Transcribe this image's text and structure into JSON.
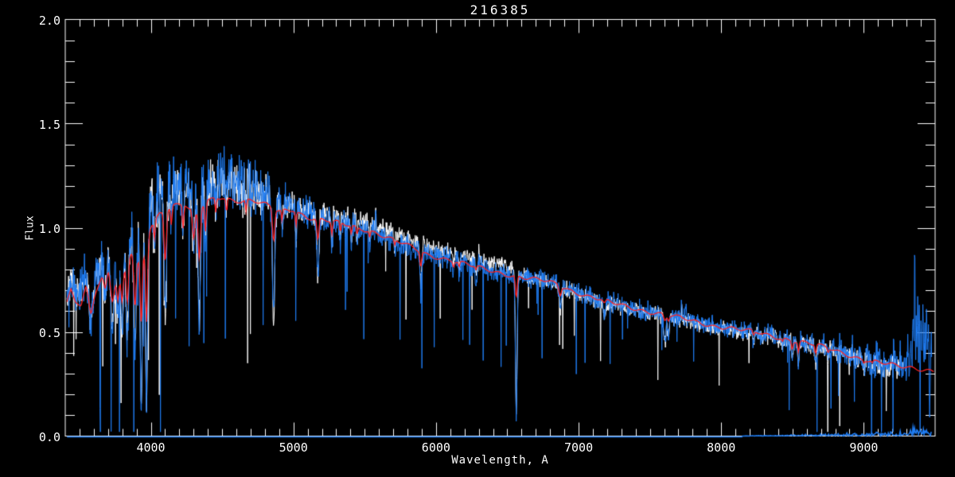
{
  "chart_data": {
    "type": "line",
    "title": "216385",
    "xlabel": "Wavelength, A",
    "ylabel": "Flux",
    "xlim": [
      3400,
      9500
    ],
    "ylim": [
      0.0,
      2.0
    ],
    "grid": false,
    "legend": "none",
    "background_color": "#000000",
    "axis_color": "#FFFFFF",
    "x_ticks": [
      {
        "value": 4000,
        "label": "4000"
      },
      {
        "value": 5000,
        "label": "5000"
      },
      {
        "value": 6000,
        "label": "6000"
      },
      {
        "value": 7000,
        "label": "7000"
      },
      {
        "value": 8000,
        "label": "8000"
      },
      {
        "value": 9000,
        "label": "9000"
      }
    ],
    "x_minor_step": 100,
    "y_ticks": [
      {
        "value": 0.0,
        "label": "0.0"
      },
      {
        "value": 0.5,
        "label": "0.5"
      },
      {
        "value": 1.0,
        "label": "1.0"
      },
      {
        "value": 1.5,
        "label": "1.5"
      },
      {
        "value": 2.0,
        "label": "2.0"
      }
    ],
    "y_minor_step": 0.1,
    "series": [
      {
        "name": "observed-spectrum",
        "color": "#1F7CF2",
        "style": "noisy"
      },
      {
        "name": "comparison-spectrum",
        "color": "#FFFFFF",
        "style": "noisy"
      },
      {
        "name": "model-fit",
        "color": "#FF2222",
        "style": "smooth"
      },
      {
        "name": "sky-error-floor",
        "color": "#1F7CF2",
        "style": "flat-near-zero"
      }
    ],
    "data_range": {
      "start": 3412,
      "end_blue": 9478,
      "end_white": 9280,
      "end_model": 9490
    },
    "continuum": [
      [
        3410,
        0.63
      ],
      [
        3440,
        0.7
      ],
      [
        3470,
        0.65
      ],
      [
        3510,
        0.63
      ],
      [
        3545,
        0.72
      ],
      [
        3580,
        0.66
      ],
      [
        3620,
        0.71
      ],
      [
        3660,
        0.77
      ],
      [
        3700,
        0.8
      ],
      [
        3745,
        0.75
      ],
      [
        3775,
        0.8
      ],
      [
        3810,
        0.79
      ],
      [
        3840,
        0.86
      ],
      [
        3870,
        0.88
      ],
      [
        3910,
        0.83
      ],
      [
        3955,
        0.88
      ],
      [
        4000,
        1.01
      ],
      [
        4060,
        1.07
      ],
      [
        4150,
        1.11
      ],
      [
        4240,
        1.11
      ],
      [
        4305,
        1.06
      ],
      [
        4400,
        1.13
      ],
      [
        4500,
        1.15
      ],
      [
        4600,
        1.13
      ],
      [
        4700,
        1.13
      ],
      [
        4800,
        1.11
      ],
      [
        4900,
        1.08
      ],
      [
        5000,
        1.09
      ],
      [
        5100,
        1.05
      ],
      [
        5250,
        1.03
      ],
      [
        5400,
        1.01
      ],
      [
        5550,
        0.985
      ],
      [
        5700,
        0.94
      ],
      [
        5850,
        0.9
      ],
      [
        5950,
        0.87
      ],
      [
        6050,
        0.855
      ],
      [
        6150,
        0.835
      ],
      [
        6250,
        0.815
      ],
      [
        6350,
        0.8
      ],
      [
        6450,
        0.785
      ],
      [
        6550,
        0.77
      ],
      [
        6650,
        0.755
      ],
      [
        6750,
        0.745
      ],
      [
        6850,
        0.73
      ],
      [
        6950,
        0.7
      ],
      [
        7050,
        0.675
      ],
      [
        7150,
        0.655
      ],
      [
        7250,
        0.635
      ],
      [
        7350,
        0.62
      ],
      [
        7450,
        0.605
      ],
      [
        7550,
        0.59
      ],
      [
        7650,
        0.575
      ],
      [
        7750,
        0.56
      ],
      [
        7850,
        0.545
      ],
      [
        7950,
        0.53
      ],
      [
        8050,
        0.52
      ],
      [
        8150,
        0.507
      ],
      [
        8250,
        0.497
      ],
      [
        8350,
        0.483
      ],
      [
        8450,
        0.468
      ],
      [
        8550,
        0.452
      ],
      [
        8650,
        0.437
      ],
      [
        8750,
        0.422
      ],
      [
        8850,
        0.402
      ],
      [
        8950,
        0.378
      ],
      [
        9050,
        0.358
      ],
      [
        9150,
        0.345
      ],
      [
        9250,
        0.335
      ],
      [
        9350,
        0.33
      ],
      [
        9450,
        0.318
      ],
      [
        9500,
        0.31
      ]
    ],
    "absorption_lines": [
      [
        3580,
        14,
        0.25,
        0.1
      ],
      [
        3680,
        10,
        0.22,
        0.1
      ],
      [
        3730,
        12,
        0.35,
        0.15
      ],
      [
        3770,
        9,
        0.35,
        0.18
      ],
      [
        3798,
        8,
        0.4,
        0.2
      ],
      [
        3835,
        8,
        0.5,
        0.25
      ],
      [
        3889,
        8,
        0.55,
        0.28
      ],
      [
        3933,
        7,
        0.82,
        0.38
      ],
      [
        3970,
        7,
        0.84,
        0.4
      ],
      [
        4026,
        5,
        0.18,
        0.08
      ],
      [
        4101,
        8,
        0.52,
        0.22
      ],
      [
        4144,
        5,
        0.15,
        0.08
      ],
      [
        4226,
        5,
        0.22,
        0.1
      ],
      [
        4300,
        8,
        0.2,
        0.12
      ],
      [
        4340,
        8,
        0.52,
        0.22
      ],
      [
        4383,
        5,
        0.25,
        0.12
      ],
      [
        4455,
        4,
        0.15,
        0.06
      ],
      [
        4531,
        4,
        0.12,
        0.06
      ],
      [
        4668,
        4,
        0.12,
        0.05
      ],
      [
        4861,
        8,
        0.52,
        0.14
      ],
      [
        4920,
        4,
        0.12,
        0.05
      ],
      [
        5018,
        4,
        0.15,
        0.06
      ],
      [
        5172,
        7,
        0.28,
        0.1
      ],
      [
        5270,
        5,
        0.14,
        0.06
      ],
      [
        5329,
        4,
        0.1,
        0.05
      ],
      [
        5406,
        4,
        0.1,
        0.04
      ],
      [
        5446,
        4,
        0.08,
        0.04
      ],
      [
        5535,
        4,
        0.08,
        0.03
      ],
      [
        5710,
        4,
        0.08,
        0.03
      ],
      [
        5893,
        6,
        0.22,
        0.08
      ],
      [
        6122,
        4,
        0.08,
        0.03
      ],
      [
        6162,
        4,
        0.08,
        0.03
      ],
      [
        6280,
        5,
        0.1,
        0.02
      ],
      [
        6563,
        6,
        0.85,
        0.14
      ],
      [
        6870,
        8,
        0.18,
        0.06
      ],
      [
        7180,
        9,
        0.1,
        0.03
      ],
      [
        7605,
        8,
        0.22,
        0.05
      ],
      [
        7630,
        6,
        0.15,
        0.04
      ],
      [
        8227,
        6,
        0.1,
        0.04
      ],
      [
        8430,
        5,
        0.08,
        0.03
      ],
      [
        8498,
        5,
        0.16,
        0.08
      ],
      [
        8542,
        5,
        0.24,
        0.11
      ],
      [
        8662,
        5,
        0.22,
        0.1
      ],
      [
        8750,
        4,
        0.1,
        0.05
      ],
      [
        9000,
        5,
        0.08,
        0.03
      ],
      [
        9060,
        5,
        0.08,
        0.03
      ]
    ],
    "noise_amplitude": [
      [
        3410,
        0.09
      ],
      [
        3700,
        0.11
      ],
      [
        4000,
        0.13
      ],
      [
        4700,
        0.12
      ],
      [
        4900,
        0.08
      ],
      [
        5300,
        0.055
      ],
      [
        5600,
        0.05
      ],
      [
        6300,
        0.042
      ],
      [
        6900,
        0.04
      ],
      [
        7500,
        0.038
      ],
      [
        8200,
        0.042
      ],
      [
        8900,
        0.05
      ],
      [
        9200,
        0.065
      ],
      [
        9500,
        0.075
      ]
    ],
    "offsets": {
      "blue": [
        [
          3410,
          0.06
        ],
        [
          3900,
          0.07
        ],
        [
          4000,
          0.1
        ],
        [
          4600,
          0.08
        ],
        [
          4900,
          0.04
        ],
        [
          5300,
          0.01
        ],
        [
          5500,
          0.0
        ],
        [
          9500,
          0.0
        ]
      ],
      "white": [
        [
          3410,
          0.05
        ],
        [
          4000,
          0.08
        ],
        [
          4600,
          0.06
        ],
        [
          4900,
          0.03
        ],
        [
          5350,
          0.03
        ],
        [
          5450,
          0.035
        ],
        [
          6500,
          0.035
        ],
        [
          6650,
          0.0
        ],
        [
          7000,
          -0.008
        ],
        [
          8600,
          -0.008
        ],
        [
          9280,
          0.0
        ]
      ]
    },
    "spikes": [
      [
        5577,
        0.1,
        2.5
      ],
      [
        6301,
        0.06,
        2.5
      ],
      [
        6864,
        0.07,
        3
      ],
      [
        7722,
        0.1,
        3
      ],
      [
        7753,
        0.07,
        3
      ],
      [
        8346,
        0.05,
        3
      ],
      [
        8830,
        0.05,
        3
      ],
      [
        8920,
        0.05,
        3
      ],
      [
        9020,
        0.06,
        3
      ],
      [
        9090,
        0.05,
        3
      ],
      [
        9150,
        0.06,
        3
      ],
      [
        9210,
        0.06,
        3
      ],
      [
        9255,
        0.07,
        3
      ],
      [
        9285,
        0.08,
        3
      ],
      [
        9310,
        0.12,
        3
      ],
      [
        9330,
        0.2,
        3
      ],
      [
        9345,
        0.28,
        3
      ],
      [
        9357,
        0.62,
        2.5
      ],
      [
        9368,
        0.22,
        3
      ],
      [
        9378,
        0.4,
        2.5
      ],
      [
        9390,
        0.26,
        3
      ],
      [
        9402,
        0.22,
        3
      ],
      [
        9415,
        0.32,
        3
      ],
      [
        9428,
        0.22,
        3
      ],
      [
        9440,
        0.28,
        3
      ],
      [
        9452,
        0.25,
        3
      ],
      [
        9462,
        -0.24,
        2.5
      ],
      [
        9472,
        0.18,
        3
      ]
    ],
    "sky": {
      "base_flux": 0.006,
      "noise_start": 8150,
      "end": 9478
    }
  }
}
